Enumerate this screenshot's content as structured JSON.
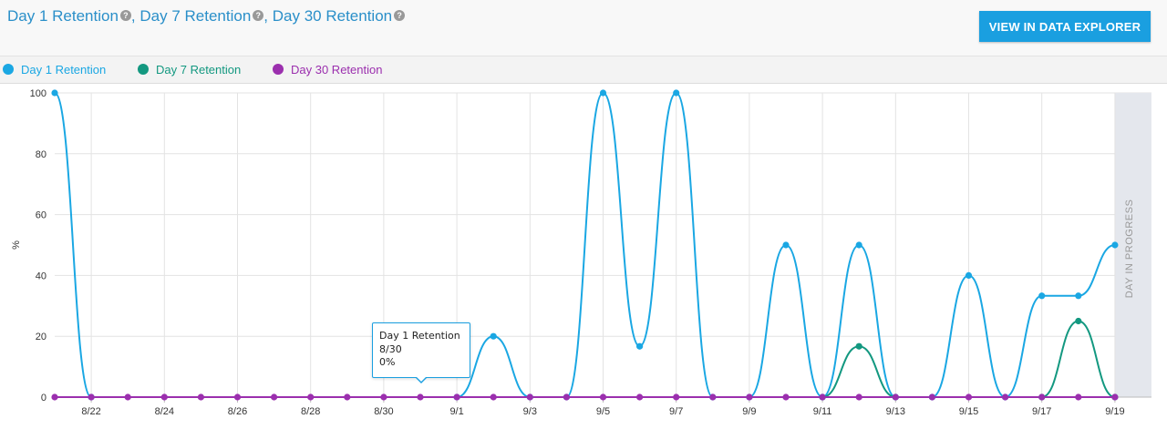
{
  "header": {
    "title_parts": [
      "Day 1 Retention",
      "Day 7 Retention",
      "Day 30 Retention"
    ],
    "separator": ",",
    "help_glyph": "?",
    "button_label": "VIEW IN DATA EXPLORER"
  },
  "legend": [
    {
      "label": "Day 1 Retention",
      "color": "#1aa7e3"
    },
    {
      "label": "Day 7 Retention",
      "color": "#139880"
    },
    {
      "label": "Day 30 Retention",
      "color": "#9b2fae"
    }
  ],
  "tooltip": {
    "series": "Day 1 Retention",
    "date": "8/30",
    "value": "0%"
  },
  "chart_data": {
    "type": "line",
    "x": [
      "8/21",
      "8/22",
      "8/23",
      "8/24",
      "8/25",
      "8/26",
      "8/27",
      "8/28",
      "8/29",
      "8/30",
      "8/31",
      "9/1",
      "9/2",
      "9/3",
      "9/4",
      "9/5",
      "9/6",
      "9/7",
      "9/8",
      "9/9",
      "9/10",
      "9/11",
      "9/12",
      "9/13",
      "9/14",
      "9/15",
      "9/16",
      "9/17",
      "9/18",
      "9/19"
    ],
    "x_tick_labels": [
      "8/22",
      "8/24",
      "8/26",
      "8/28",
      "8/30",
      "9/1",
      "9/3",
      "9/5",
      "9/7",
      "9/9",
      "9/11",
      "9/13",
      "9/15",
      "9/17",
      "9/19"
    ],
    "ylabel": "%",
    "ylim": [
      0,
      100
    ],
    "y_ticks": [
      0,
      20,
      40,
      60,
      80,
      100
    ],
    "grid": true,
    "band_label": "DAY IN PROGRESS",
    "series": [
      {
        "name": "Day 1 Retention",
        "color": "#1aa7e3",
        "values": [
          100,
          0,
          null,
          null,
          null,
          null,
          null,
          null,
          null,
          null,
          null,
          0,
          20,
          0,
          0,
          100,
          16.7,
          100,
          0,
          0,
          50,
          0,
          50,
          0,
          0,
          40,
          0,
          33.3,
          33.3,
          50
        ]
      },
      {
        "name": "Day 7 Retention",
        "color": "#139880",
        "values": [
          null,
          null,
          null,
          null,
          null,
          null,
          null,
          null,
          null,
          null,
          null,
          null,
          null,
          null,
          null,
          null,
          null,
          null,
          null,
          null,
          null,
          0,
          16.7,
          0,
          null,
          null,
          null,
          0,
          25,
          0
        ]
      },
      {
        "name": "Day 30 Retention",
        "color": "#9b2fae",
        "values": [
          0,
          0,
          0,
          0,
          0,
          0,
          0,
          0,
          0,
          0,
          0,
          0,
          0,
          0,
          0,
          0,
          0,
          0,
          0,
          0,
          0,
          0,
          0,
          0,
          0,
          0,
          0,
          0,
          0,
          0
        ]
      }
    ]
  }
}
